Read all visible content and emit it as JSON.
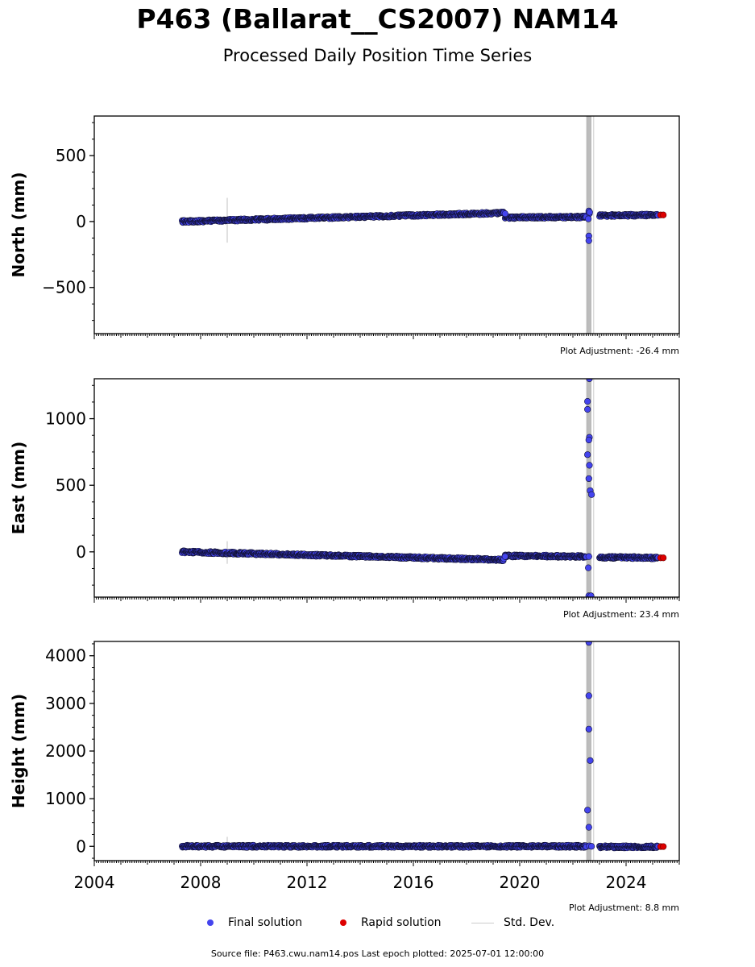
{
  "title": "P463 (Ballarat__CS2007) NAM14",
  "subtitle": "Processed Daily Position Time Series",
  "legend": {
    "final_label": "Final solution",
    "rapid_label": "Rapid solution",
    "std_label": "Std. Dev."
  },
  "source_text": "Source file: P463.cwu.nam14.pos  Last epoch plotted: 2025-07-01 12:00:00",
  "colors": {
    "final": "#4444ee",
    "final_edge": "#111133",
    "rapid": "#dd0000",
    "std": "#cccccc",
    "std_spike": "#888888"
  },
  "chart_data": [
    {
      "type": "scatter",
      "ylabel": "North (mm)",
      "xlim": [
        2004.0,
        2026.0
      ],
      "ylim": [
        -850,
        800
      ],
      "yticks": [
        -500,
        0,
        500
      ],
      "ytick_labels": [
        "−500",
        "0",
        "500"
      ],
      "adjustment": "Plot Adjustment: -26.4 mm",
      "trend_segments": [
        {
          "x_start": 2007.3,
          "x_end": 2019.4,
          "y_start": 0,
          "y_end": 65
        },
        {
          "x_start": 2019.45,
          "x_end": 2022.5,
          "y_start": 30,
          "y_end": 35
        },
        {
          "x_start": 2023.0,
          "x_end": 2025.2,
          "y_start": 45,
          "y_end": 50
        }
      ],
      "spike_x": 2022.6,
      "outliers": [
        {
          "x": 2022.6,
          "y": 80
        },
        {
          "x": 2022.62,
          "y": 60
        },
        {
          "x": 2022.58,
          "y": 20
        },
        {
          "x": 2022.6,
          "y": -110
        },
        {
          "x": 2022.6,
          "y": -145
        },
        {
          "x": 2022.63,
          "y": 70
        },
        {
          "x": 2019.45,
          "y": 60
        }
      ],
      "rapid": [
        {
          "x": 2025.3,
          "y": 50
        },
        {
          "x": 2025.4,
          "y": 50
        }
      ],
      "std_bar": {
        "x": 2009.0,
        "low": -160,
        "high": 180
      }
    },
    {
      "type": "scatter",
      "ylabel": "East (mm)",
      "xlim": [
        2004.0,
        2026.0
      ],
      "ylim": [
        -340,
        1300
      ],
      "yticks": [
        0,
        500,
        1000
      ],
      "ytick_labels": [
        "0",
        "500",
        "1000"
      ],
      "adjustment": "Plot Adjustment: 23.4 mm",
      "trend_segments": [
        {
          "x_start": 2007.3,
          "x_end": 2019.4,
          "y_start": 0,
          "y_end": -60
        },
        {
          "x_start": 2019.45,
          "x_end": 2022.5,
          "y_start": -30,
          "y_end": -35
        },
        {
          "x_start": 2023.0,
          "x_end": 2025.2,
          "y_start": -40,
          "y_end": -45
        }
      ],
      "spike_x": 2022.6,
      "outliers": [
        {
          "x": 2022.62,
          "y": 1300
        },
        {
          "x": 2022.55,
          "y": 1130
        },
        {
          "x": 2022.55,
          "y": 1070
        },
        {
          "x": 2022.62,
          "y": 860
        },
        {
          "x": 2022.6,
          "y": 840
        },
        {
          "x": 2022.55,
          "y": 730
        },
        {
          "x": 2022.62,
          "y": 650
        },
        {
          "x": 2022.6,
          "y": 550
        },
        {
          "x": 2022.65,
          "y": 460
        },
        {
          "x": 2022.7,
          "y": 430
        },
        {
          "x": 2022.6,
          "y": -35
        },
        {
          "x": 2022.58,
          "y": -120
        },
        {
          "x": 2022.6,
          "y": -330
        },
        {
          "x": 2022.68,
          "y": -330
        },
        {
          "x": 2019.45,
          "y": -35
        }
      ],
      "rapid": [
        {
          "x": 2025.3,
          "y": -45
        },
        {
          "x": 2025.4,
          "y": -45
        }
      ],
      "std_bar": {
        "x": 2009.0,
        "low": -90,
        "high": 80
      }
    },
    {
      "type": "scatter",
      "ylabel": "Height (mm)",
      "xlim": [
        2004.0,
        2026.0
      ],
      "ylim": [
        -300,
        4300
      ],
      "yticks": [
        0,
        1000,
        2000,
        3000,
        4000
      ],
      "ytick_labels": [
        "0",
        "1000",
        "2000",
        "3000",
        "4000"
      ],
      "xticks": [
        2004,
        2008,
        2012,
        2016,
        2020,
        2024
      ],
      "adjustment": "Plot Adjustment: 8.8 mm",
      "trend_segments": [
        {
          "x_start": 2007.3,
          "x_end": 2022.5,
          "y_start": 0,
          "y_end": 0
        },
        {
          "x_start": 2023.0,
          "x_end": 2025.2,
          "y_start": -10,
          "y_end": -10
        }
      ],
      "spike_x": 2022.6,
      "outliers": [
        {
          "x": 2022.6,
          "y": 4280
        },
        {
          "x": 2022.6,
          "y": 3160
        },
        {
          "x": 2022.6,
          "y": 2460
        },
        {
          "x": 2022.65,
          "y": 1800
        },
        {
          "x": 2022.55,
          "y": 760
        },
        {
          "x": 2022.6,
          "y": 400
        },
        {
          "x": 2022.62,
          "y": 10
        },
        {
          "x": 2022.7,
          "y": 0
        }
      ],
      "rapid": [
        {
          "x": 2025.3,
          "y": -5
        },
        {
          "x": 2025.4,
          "y": -5
        }
      ],
      "std_bar": {
        "x": 2009.0,
        "low": -50,
        "high": 200
      }
    }
  ]
}
